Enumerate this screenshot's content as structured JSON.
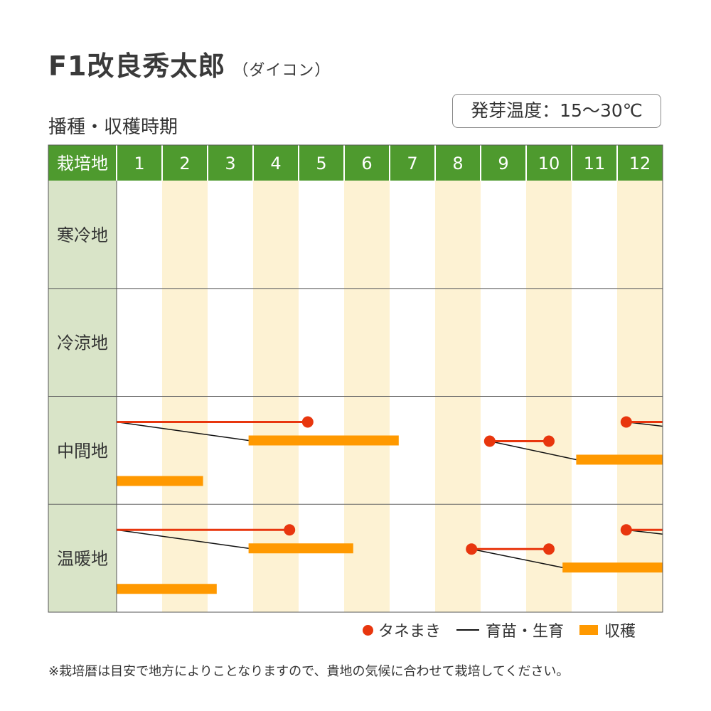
{
  "title": {
    "main": "F1改良秀太郎",
    "sub": "（ダイコン）"
  },
  "subtitle": "播種・収穫時期",
  "temp_box": "発芽温度：15～30℃",
  "header": {
    "region_label": "栽培地",
    "months": [
      "1",
      "2",
      "3",
      "4",
      "5",
      "6",
      "7",
      "8",
      "9",
      "10",
      "11",
      "12"
    ]
  },
  "regions": [
    "寒冷地",
    "冷涼地",
    "中間地",
    "温暖地"
  ],
  "legend": {
    "sowing": "タネまき",
    "growing": "育苗・生育",
    "harvest": "収穫"
  },
  "note": "※栽培暦は目安で地方によりことなりますので、貴地の気候に合わせて栽培してください。",
  "colors": {
    "header_green": "#4e9a2e",
    "region_bg": "#d9e4c8",
    "alt_month_bg": "#fdf2d3",
    "sowing": "#e8360e",
    "harvest": "#ff9900",
    "growing": "#111111"
  },
  "chart_data": {
    "type": "gantt",
    "x_unit": "month",
    "x_range": [
      1,
      13
    ],
    "regions": [
      {
        "name": "寒冷地",
        "rows": []
      },
      {
        "name": "冷涼地",
        "rows": []
      },
      {
        "name": "中間地",
        "rows": [
          {
            "sowing": [
              1.0,
              5.2
            ],
            "growing": [
              1.0,
              3.9
            ],
            "harvest": [
              3.9,
              7.2
            ]
          },
          {
            "sowing": [
              9.2,
              10.5
            ],
            "growing": [
              9.2,
              11.1
            ],
            "harvest": [
              11.1,
              13.0
            ]
          },
          {
            "harvest": [
              1.0,
              2.9
            ]
          },
          {
            "sowing": [
              12.2,
              13.0
            ],
            "growing": [
              12.2,
              13.0
            ]
          }
        ]
      },
      {
        "name": "温暖地",
        "rows": [
          {
            "sowing": [
              1.0,
              4.8
            ],
            "growing": [
              1.0,
              3.9
            ],
            "harvest": [
              3.9,
              6.2
            ]
          },
          {
            "sowing": [
              8.8,
              10.5
            ],
            "growing": [
              8.8,
              10.8
            ],
            "harvest": [
              10.8,
              13.0
            ]
          },
          {
            "harvest": [
              1.0,
              3.2
            ]
          },
          {
            "sowing": [
              12.2,
              13.0
            ],
            "growing": [
              12.2,
              13.0
            ]
          }
        ]
      }
    ]
  }
}
